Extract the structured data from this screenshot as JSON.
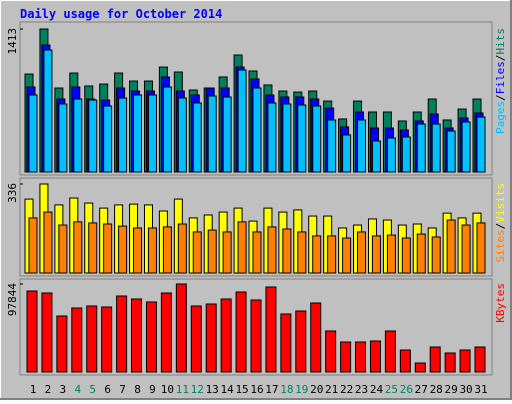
{
  "title": "Daily usage for October 2014",
  "legend_separator": "/",
  "categories": [
    "1",
    "2",
    "3",
    "4",
    "5",
    "6",
    "7",
    "8",
    "9",
    "10",
    "11",
    "12",
    "13",
    "14",
    "15",
    "16",
    "17",
    "18",
    "19",
    "20",
    "21",
    "22",
    "23",
    "24",
    "25",
    "26",
    "27",
    "28",
    "29",
    "30",
    "31"
  ],
  "category_colors": [
    "#000000",
    "#000000",
    "#000000",
    "#00805C",
    "#00805C",
    "#000000",
    "#000000",
    "#000000",
    "#000000",
    "#000000",
    "#00805C",
    "#00805C",
    "#000000",
    "#000000",
    "#000000",
    "#000000",
    "#000000",
    "#00805C",
    "#00805C",
    "#000000",
    "#000000",
    "#000000",
    "#000000",
    "#000000",
    "#00805C",
    "#00805C",
    "#000000",
    "#000000",
    "#000000",
    "#000000",
    "#000000"
  ],
  "chart_data": [
    {
      "type": "bar",
      "ylim": [
        0,
        1413
      ],
      "yticks": [
        1413
      ],
      "series": [
        {
          "name": "Hits",
          "color": "#00805C",
          "values": [
            968,
            1413,
            830,
            978,
            850,
            869,
            978,
            899,
            899,
            1037,
            988,
            810,
            830,
            939,
            1156,
            998,
            860,
            800,
            790,
            800,
            701,
            524,
            701,
            593,
            593,
            504,
            593,
            721,
            514,
            622,
            721
          ]
        },
        {
          "name": "Files",
          "color": "#0000FF",
          "values": [
            840,
            1255,
            721,
            840,
            721,
            711,
            830,
            800,
            800,
            939,
            800,
            761,
            830,
            830,
            1037,
            919,
            761,
            741,
            741,
            721,
            632,
            445,
            593,
            435,
            435,
            415,
            504,
            573,
            435,
            534,
            583
          ]
        },
        {
          "name": "Pages",
          "color": "#00C0FF",
          "values": [
            761,
            1205,
            672,
            721,
            711,
            652,
            731,
            761,
            761,
            840,
            731,
            682,
            751,
            741,
            1008,
            830,
            682,
            672,
            662,
            652,
            514,
            366,
            514,
            306,
            336,
            346,
            474,
            474,
            405,
            494,
            543
          ]
        }
      ]
    },
    {
      "type": "bar",
      "ylim": [
        0,
        336
      ],
      "yticks": [
        336
      ],
      "series": [
        {
          "name": "Visits",
          "color": "#FFFF00",
          "values": [
            279,
            336,
            257,
            283,
            264,
            245,
            257,
            260,
            257,
            234,
            279,
            208,
            219,
            230,
            245,
            196,
            245,
            230,
            238,
            215,
            215,
            170,
            181,
            204,
            200,
            181,
            185,
            170,
            226,
            208,
            226
          ]
        },
        {
          "name": "Sites",
          "color": "#FF8000",
          "values": [
            208,
            230,
            181,
            193,
            189,
            185,
            177,
            170,
            170,
            174,
            185,
            155,
            162,
            155,
            193,
            155,
            174,
            166,
            155,
            140,
            140,
            132,
            155,
            140,
            143,
            132,
            147,
            136,
            200,
            181,
            189
          ]
        }
      ]
    },
    {
      "type": "bar",
      "ylim": [
        0,
        97844
      ],
      "yticks": [
        97844
      ],
      "series": [
        {
          "name": "KBytes",
          "color": "#FF0000",
          "values": [
            90072,
            87848,
            62272,
            71168,
            73392,
            72280,
            84512,
            81176,
            77840,
            87848,
            97844,
            73392,
            75616,
            81176,
            88960,
            80064,
            94520,
            64496,
            67832,
            76728,
            45592,
            33360,
            33360,
            34472,
            45592,
            24464,
            10008,
            27800,
            21128,
            24464,
            27800
          ]
        }
      ]
    }
  ]
}
